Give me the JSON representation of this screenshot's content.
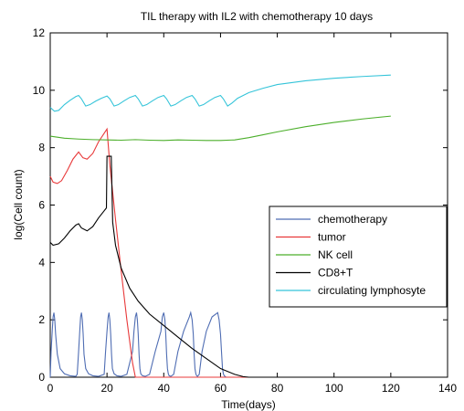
{
  "chart_data": {
    "type": "line",
    "title": "TIL therapy with IL2 with chemotherapy 10 days",
    "xlabel": "Time(days)",
    "ylabel": "log(Cell count)",
    "xlim": [
      0,
      140
    ],
    "ylim": [
      0,
      12
    ],
    "xticks": [
      0,
      20,
      40,
      60,
      80,
      100,
      120,
      140
    ],
    "yticks": [
      0,
      2,
      4,
      6,
      8,
      10,
      12
    ],
    "grid": false,
    "legend_position": "center-right",
    "series": [
      {
        "name": "chemotherapy",
        "color": "#4f6db3",
        "x": [
          0,
          0.3,
          0.7,
          1.0,
          1.3,
          1.6,
          1.9,
          2.5,
          3.5,
          5,
          7,
          9,
          9.5,
          10.0,
          10.4,
          10.7,
          11.0,
          11.3,
          11.6,
          11.9,
          12.5,
          13.5,
          15,
          17,
          19,
          19.5,
          20.0,
          20.4,
          20.7,
          21.0,
          21.3,
          21.6,
          21.9,
          22.5,
          23.5,
          25,
          27,
          29,
          29.5,
          30.0,
          30.4,
          30.7,
          31.0,
          31.3,
          31.6,
          31.9,
          32.5,
          33.5,
          35,
          37,
          39,
          39.5,
          40.0,
          40.4,
          40.7,
          41.0,
          41.3,
          41.6,
          41.9,
          42.5,
          43.5,
          45,
          47,
          49,
          49.5,
          50.0,
          50.4,
          50.7,
          51.0,
          51.3,
          51.6,
          51.9,
          52.5,
          53.5,
          55,
          57,
          59,
          59.5,
          60.0,
          60.4,
          60.7,
          61.0,
          61.3,
          61.6,
          61.9,
          62.5,
          63.5,
          65,
          67,
          69,
          75,
          90,
          120
        ],
        "y": [
          0,
          0.9,
          1.6,
          2.1,
          2.25,
          2.0,
          1.5,
          0.8,
          0.3,
          0.12,
          0.05,
          0.03,
          0.1,
          0.9,
          1.6,
          2.1,
          2.25,
          2.0,
          1.5,
          0.8,
          0.3,
          0.12,
          0.05,
          0.03,
          0.1,
          0.9,
          1.6,
          2.1,
          2.25,
          2.0,
          1.5,
          0.8,
          0.3,
          0.12,
          0.05,
          0.03,
          0.1,
          0.9,
          1.6,
          2.1,
          2.25,
          2.0,
          1.5,
          0.8,
          0.3,
          0.12,
          0.05,
          0.03,
          0.1,
          0.9,
          1.6,
          2.1,
          2.25,
          2.0,
          1.5,
          0.8,
          0.3,
          0.12,
          0.05,
          0.03,
          0.1,
          0.9,
          1.6,
          2.1,
          2.25,
          2.0,
          1.5,
          0.8,
          0.3,
          0.12,
          0.05,
          0.03,
          0.1,
          0.9,
          1.6,
          2.1,
          2.25,
          2.0,
          1.5,
          0.8,
          0.3,
          0.12,
          0.05,
          0.03,
          0.0,
          0.0,
          0.0,
          0.0,
          0.0,
          0.0,
          0.0,
          0.0,
          0.0
        ]
      },
      {
        "name": "tumor",
        "color": "#e8393a",
        "x": [
          0,
          1,
          2.5,
          4,
          6,
          8,
          10,
          11.5,
          13,
          15,
          17,
          19,
          20,
          21,
          23,
          25,
          27,
          29,
          30,
          40,
          60,
          80,
          100,
          120
        ],
        "y": [
          7.0,
          6.8,
          6.75,
          6.85,
          7.2,
          7.6,
          7.85,
          7.65,
          7.6,
          7.8,
          8.2,
          8.5,
          8.65,
          7.4,
          5.5,
          3.7,
          2.0,
          0.5,
          0.0,
          0.0,
          0.0,
          0.0,
          0.0,
          0.0
        ]
      },
      {
        "name": "NK cell",
        "color": "#4caf2b",
        "x": [
          0,
          5,
          10,
          15,
          20,
          25,
          30,
          35,
          40,
          45,
          50,
          55,
          60,
          65,
          70,
          75,
          80,
          90,
          100,
          110,
          120
        ],
        "y": [
          8.4,
          8.33,
          8.3,
          8.28,
          8.27,
          8.26,
          8.28,
          8.26,
          8.25,
          8.27,
          8.26,
          8.25,
          8.25,
          8.27,
          8.35,
          8.45,
          8.55,
          8.73,
          8.88,
          9.0,
          9.1
        ]
      },
      {
        "name": "CD8+T",
        "color": "#000000",
        "x": [
          0,
          1,
          3,
          5,
          7,
          9,
          10,
          11,
          13,
          15,
          17,
          19,
          19.8,
          20,
          21.5,
          22,
          23,
          25,
          28,
          31,
          35,
          40,
          45,
          50,
          55,
          60,
          65,
          68,
          70,
          80,
          100,
          120
        ],
        "y": [
          4.7,
          4.6,
          4.65,
          4.85,
          5.1,
          5.3,
          5.35,
          5.2,
          5.1,
          5.25,
          5.55,
          5.8,
          5.9,
          7.7,
          7.7,
          5.4,
          4.6,
          3.8,
          3.1,
          2.65,
          2.2,
          1.8,
          1.4,
          1.0,
          0.65,
          0.3,
          0.1,
          0.02,
          0.0,
          0.0,
          0.0,
          0.0
        ]
      },
      {
        "name": "circulating lymphosyte",
        "color": "#34c4d9",
        "x": [
          0,
          1.5,
          3,
          5,
          7,
          9,
          10,
          11,
          12.5,
          14,
          16,
          18,
          20,
          21,
          22.5,
          24,
          26,
          28,
          30,
          31,
          32.5,
          34,
          36,
          38,
          40,
          41,
          42.5,
          44,
          46,
          48,
          50,
          51,
          52.5,
          54,
          56,
          58,
          60,
          61,
          62.5,
          64,
          66,
          70,
          75,
          80,
          90,
          100,
          110,
          120
        ],
        "y": [
          9.4,
          9.27,
          9.3,
          9.5,
          9.65,
          9.78,
          9.82,
          9.7,
          9.45,
          9.5,
          9.62,
          9.72,
          9.8,
          9.7,
          9.45,
          9.5,
          9.63,
          9.75,
          9.82,
          9.7,
          9.45,
          9.5,
          9.63,
          9.75,
          9.82,
          9.7,
          9.45,
          9.5,
          9.63,
          9.75,
          9.82,
          9.7,
          9.45,
          9.5,
          9.63,
          9.75,
          9.82,
          9.7,
          9.45,
          9.55,
          9.72,
          9.92,
          10.07,
          10.2,
          10.33,
          10.42,
          10.48,
          10.53
        ]
      }
    ]
  }
}
